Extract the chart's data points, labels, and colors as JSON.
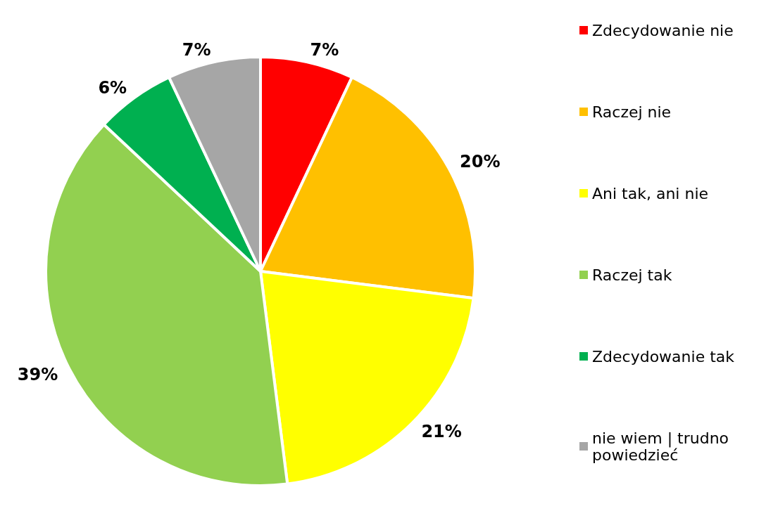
{
  "chart_data": {
    "type": "pie",
    "categories": [
      "Zdecydowanie nie",
      "Raczej nie",
      "Ani tak, ani nie",
      "Raczej tak",
      "Zdecydowanie tak",
      "nie wiem | trudno powiedzieć"
    ],
    "values": [
      7,
      20,
      21,
      39,
      6,
      7
    ],
    "colors": [
      "#ff0000",
      "#ffc000",
      "#ffff00",
      "#92d050",
      "#00b050",
      "#a6a6a6"
    ],
    "value_labels": [
      "7%",
      "20%",
      "21%",
      "39%",
      "6%",
      "7%"
    ],
    "legend": "right"
  }
}
